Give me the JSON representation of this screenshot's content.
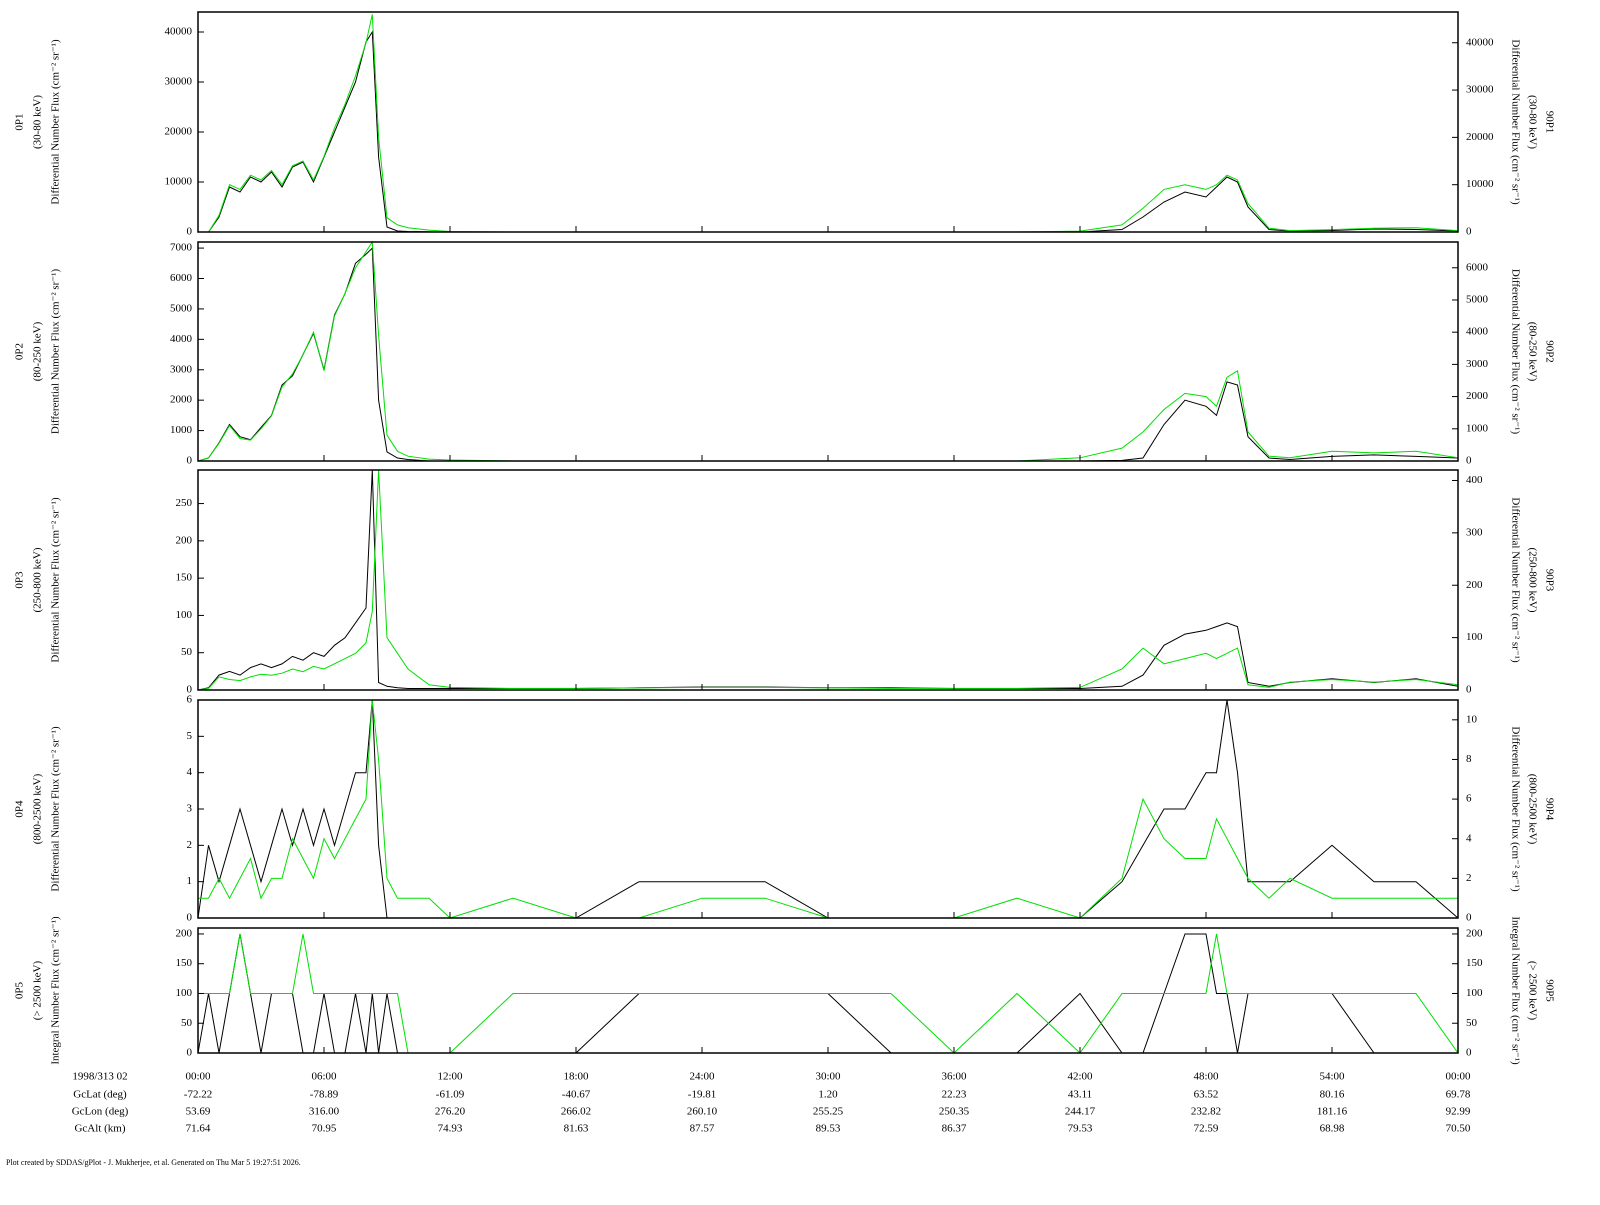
{
  "chart_data": [
    {
      "type": "line",
      "ylabel": [
        "0P1",
        "(30-80 keV)",
        "Differential Number Flux (cm⁻² sr⁻¹)"
      ],
      "y2label": [
        "90P1",
        "(30-80 keV)",
        "Differential Number Flux (cm⁻² sr⁻¹)"
      ],
      "xlim": [
        0,
        60
      ],
      "ylim": [
        0,
        44000
      ],
      "yticks": [
        0,
        10000,
        20000,
        30000,
        40000
      ],
      "y2lim": [
        0,
        46500
      ],
      "y2ticks": [
        0,
        10000,
        20000,
        30000,
        40000
      ],
      "x": [
        0,
        0.5,
        1,
        1.5,
        2,
        2.5,
        3,
        3.5,
        4,
        4.5,
        5,
        5.5,
        6,
        6.5,
        7,
        7.5,
        8,
        8.3,
        8.6,
        9,
        9.5,
        10,
        11,
        12,
        15,
        18,
        21,
        24,
        27,
        30,
        33,
        36,
        39,
        42,
        44,
        45,
        46,
        47,
        48,
        48.5,
        49,
        49.5,
        50,
        51,
        52,
        54,
        56,
        58,
        60
      ],
      "series": [
        {
          "color": "#000000",
          "values": [
            0,
            0,
            3000,
            9000,
            8000,
            11000,
            10000,
            12000,
            9000,
            13000,
            14000,
            10000,
            15000,
            20000,
            25000,
            30000,
            38000,
            40000,
            15000,
            1000,
            200,
            100,
            50,
            0,
            0,
            0,
            0,
            0,
            0,
            0,
            0,
            0,
            0,
            0,
            500,
            3000,
            6000,
            8000,
            7000,
            9000,
            11000,
            10000,
            5000,
            500,
            200,
            300,
            600,
            500,
            200
          ]
        },
        {
          "color": "#00e000",
          "axis": "y2",
          "values": [
            0,
            0,
            3500,
            10000,
            9000,
            12000,
            11000,
            13000,
            10000,
            14000,
            15000,
            11000,
            16000,
            22000,
            27000,
            33000,
            40000,
            46000,
            20000,
            3000,
            1500,
            900,
            400,
            100,
            0,
            0,
            0,
            0,
            0,
            0,
            0,
            0,
            0,
            200,
            1500,
            5000,
            9000,
            10000,
            9000,
            10000,
            12000,
            11000,
            6000,
            800,
            300,
            500,
            800,
            900,
            300
          ]
        }
      ]
    },
    {
      "type": "line",
      "ylabel": [
        "0P2",
        "(80-250 keV)",
        "Differential Number Flux (cm⁻² sr⁻¹)"
      ],
      "y2label": [
        "90P2",
        "(80-250 keV)",
        "Differential Number Flux (cm⁻² sr⁻¹)"
      ],
      "xlim": [
        0,
        60
      ],
      "ylim": [
        0,
        7200
      ],
      "yticks": [
        0,
        1000,
        2000,
        3000,
        4000,
        5000,
        6000,
        7000
      ],
      "y2lim": [
        0,
        6800
      ],
      "y2ticks": [
        0,
        1000,
        2000,
        3000,
        4000,
        5000,
        6000
      ],
      "x": [
        0,
        0.5,
        1,
        1.5,
        2,
        2.5,
        3,
        3.5,
        4,
        4.5,
        5,
        5.5,
        6,
        6.5,
        7,
        7.5,
        8,
        8.3,
        8.6,
        9,
        9.5,
        10,
        11,
        12,
        15,
        18,
        21,
        24,
        27,
        30,
        33,
        36,
        39,
        42,
        44,
        45,
        46,
        47,
        48,
        48.5,
        49,
        49.5,
        50,
        51,
        52,
        54,
        56,
        58,
        60
      ],
      "series": [
        {
          "color": "#000000",
          "values": [
            0,
            100,
            600,
            1200,
            800,
            700,
            1100,
            1500,
            2500,
            2800,
            3500,
            4200,
            3000,
            4800,
            5500,
            6500,
            6800,
            7000,
            2000,
            300,
            100,
            50,
            0,
            0,
            0,
            0,
            0,
            0,
            0,
            0,
            0,
            0,
            0,
            0,
            20,
            100,
            1200,
            2000,
            1800,
            1500,
            2600,
            2500,
            800,
            100,
            50,
            150,
            200,
            150,
            100
          ]
        },
        {
          "color": "#00e000",
          "axis": "y2",
          "values": [
            0,
            100,
            550,
            1100,
            700,
            650,
            1000,
            1400,
            2300,
            2700,
            3300,
            4000,
            2800,
            4500,
            5200,
            6000,
            6500,
            6800,
            3900,
            800,
            300,
            150,
            60,
            30,
            0,
            0,
            0,
            0,
            0,
            0,
            0,
            0,
            0,
            100,
            400,
            900,
            1600,
            2100,
            2000,
            1700,
            2600,
            2800,
            900,
            150,
            100,
            300,
            250,
            300,
            100
          ]
        }
      ]
    },
    {
      "type": "line",
      "ylabel": [
        "0P3",
        "(250-800 keV)",
        "Differential Number Flux (cm⁻² sr⁻¹)"
      ],
      "y2label": [
        "90P3",
        "(250-800 keV)",
        "Differential Number Flux (cm⁻² sr⁻¹)"
      ],
      "xlim": [
        0,
        60
      ],
      "ylim": [
        0,
        295
      ],
      "yticks": [
        0,
        50,
        100,
        150,
        200,
        250
      ],
      "y2lim": [
        0,
        420
      ],
      "y2ticks": [
        0,
        100,
        200,
        300,
        400
      ],
      "x": [
        0,
        0.5,
        1,
        1.5,
        2,
        2.5,
        3,
        3.5,
        4,
        4.5,
        5,
        5.5,
        6,
        6.5,
        7,
        7.5,
        8,
        8.3,
        8.6,
        9,
        9.5,
        10,
        11,
        12,
        15,
        18,
        21,
        24,
        27,
        30,
        33,
        36,
        39,
        42,
        44,
        45,
        46,
        47,
        48,
        48.5,
        49,
        49.5,
        50,
        51,
        52,
        54,
        56,
        58,
        60
      ],
      "series": [
        {
          "color": "#000000",
          "values": [
            0,
            3,
            20,
            25,
            20,
            30,
            35,
            30,
            35,
            45,
            40,
            50,
            45,
            60,
            70,
            90,
            110,
            295,
            10,
            5,
            3,
            2,
            2,
            2,
            2,
            2,
            3,
            4,
            4,
            3,
            3,
            2,
            2,
            2,
            5,
            20,
            60,
            75,
            80,
            85,
            90,
            85,
            10,
            5,
            10,
            15,
            10,
            15,
            5
          ]
        },
        {
          "color": "#00e000",
          "axis": "y2",
          "values": [
            0,
            3,
            25,
            20,
            18,
            25,
            30,
            28,
            32,
            40,
            35,
            45,
            40,
            50,
            60,
            70,
            90,
            150,
            420,
            100,
            70,
            40,
            10,
            5,
            3,
            3,
            4,
            5,
            5,
            4,
            3,
            3,
            3,
            5,
            40,
            80,
            50,
            60,
            70,
            60,
            70,
            80,
            10,
            5,
            15,
            20,
            15,
            20,
            10
          ]
        }
      ]
    },
    {
      "type": "line",
      "ylabel": [
        "0P4",
        "(800-2500 keV)",
        "Differential Number Flux (cm⁻² sr⁻¹)"
      ],
      "y2label": [
        "90P4",
        "(800-2500 keV)",
        "Differential Number Flux (cm⁻² sr⁻¹)"
      ],
      "xlim": [
        0,
        60
      ],
      "ylim": [
        0,
        6
      ],
      "yticks": [
        0,
        1,
        2,
        3,
        4,
        5,
        6
      ],
      "y2lim": [
        0,
        11
      ],
      "y2ticks": [
        0,
        2,
        4,
        6,
        8,
        10
      ],
      "x": [
        0,
        0.5,
        1,
        1.5,
        2,
        2.5,
        3,
        3.5,
        4,
        4.5,
        5,
        5.5,
        6,
        6.5,
        7,
        7.5,
        8,
        8.3,
        8.6,
        9,
        9.5,
        10,
        11,
        12,
        15,
        18,
        21,
        24,
        27,
        30,
        33,
        36,
        39,
        42,
        44,
        45,
        46,
        47,
        48,
        48.5,
        49,
        49.5,
        50,
        51,
        52,
        54,
        56,
        58,
        60
      ],
      "series": [
        {
          "color": "#000000",
          "values": [
            0,
            2,
            1,
            2,
            3,
            2,
            1,
            2,
            3,
            2,
            3,
            2,
            3,
            2,
            3,
            4,
            4,
            6,
            2,
            0,
            0,
            0,
            0,
            0,
            0,
            0,
            1,
            1,
            1,
            0,
            0,
            0,
            0,
            0,
            1,
            2,
            3,
            3,
            4,
            4,
            6,
            4,
            1,
            1,
            1,
            2,
            1,
            1,
            0
          ]
        },
        {
          "color": "#00e000",
          "axis": "y2",
          "values": [
            1,
            1,
            2,
            1,
            2,
            3,
            1,
            2,
            2,
            4,
            3,
            2,
            4,
            3,
            4,
            5,
            6,
            11,
            8,
            2,
            1,
            1,
            1,
            0,
            1,
            0,
            0,
            1,
            1,
            0,
            0,
            0,
            1,
            0,
            2,
            6,
            4,
            3,
            3,
            5,
            4,
            3,
            2,
            1,
            2,
            1,
            1,
            1,
            1
          ]
        }
      ]
    },
    {
      "type": "line",
      "ylabel": [
        "0P5",
        "(> 2500 keV)",
        "Integral Number Flux (cm⁻² sr⁻¹)"
      ],
      "y2label": [
        "90P5",
        "(> 2500 keV)",
        "Integral Number Flux (cm⁻² sr⁻¹)"
      ],
      "xlim": [
        0,
        60
      ],
      "ylim": [
        0,
        210
      ],
      "yticks": [
        0,
        50,
        100,
        150,
        200
      ],
      "y2lim": [
        0,
        210
      ],
      "y2ticks": [
        0,
        50,
        100,
        150,
        200
      ],
      "x": [
        0,
        0.5,
        1,
        1.5,
        2,
        2.5,
        3,
        3.5,
        4,
        4.5,
        5,
        5.5,
        6,
        6.5,
        7,
        7.5,
        8,
        8.3,
        8.6,
        9,
        9.5,
        10,
        11,
        12,
        15,
        18,
        21,
        24,
        27,
        30,
        33,
        36,
        39,
        42,
        44,
        45,
        46,
        47,
        48,
        48.5,
        49,
        49.5,
        50,
        51,
        52,
        54,
        56,
        58,
        60
      ],
      "xticks": [
        {
          "value": 0,
          "label": "00:00"
        },
        {
          "value": 6,
          "label": "06:00"
        },
        {
          "value": 12,
          "label": "12:00"
        },
        {
          "value": 18,
          "label": "18:00"
        },
        {
          "value": 24,
          "label": "24:00"
        },
        {
          "value": 30,
          "label": "30:00"
        },
        {
          "value": 36,
          "label": "36:00"
        },
        {
          "value": 42,
          "label": "42:00"
        },
        {
          "value": 48,
          "label": "48:00"
        },
        {
          "value": 54,
          "label": "54:00"
        },
        {
          "value": 60,
          "label": "00:00"
        }
      ],
      "xlabel": "1998/313 02",
      "series": [
        {
          "color": "#000000",
          "values": [
            0,
            100,
            0,
            100,
            200,
            100,
            0,
            100,
            100,
            100,
            0,
            0,
            100,
            0,
            0,
            100,
            0,
            100,
            0,
            100,
            0,
            0,
            0,
            0,
            0,
            0,
            100,
            100,
            100,
            100,
            0,
            0,
            0,
            100,
            0,
            0,
            100,
            200,
            200,
            100,
            100,
            0,
            100,
            100,
            100,
            100,
            0,
            0,
            0
          ]
        },
        {
          "color": "#00e000",
          "axis": "y2",
          "values": [
            100,
            100,
            100,
            100,
            200,
            100,
            100,
            100,
            100,
            100,
            200,
            100,
            100,
            100,
            100,
            100,
            100,
            100,
            100,
            100,
            100,
            0,
            0,
            0,
            100,
            100,
            100,
            100,
            100,
            100,
            100,
            0,
            100,
            0,
            100,
            100,
            100,
            100,
            100,
            200,
            100,
            100,
            100,
            100,
            100,
            100,
            100,
            100,
            0
          ]
        }
      ]
    }
  ],
  "ephemeris": {
    "rows": [
      {
        "label": "GcLat (deg)",
        "values": [
          "-72.22",
          "-78.89",
          "-61.09",
          "-40.67",
          "-19.81",
          "1.20",
          "22.23",
          "43.11",
          "63.52",
          "80.16",
          "69.78"
        ]
      },
      {
        "label": "GcLon (deg)",
        "values": [
          "53.69",
          "316.00",
          "276.20",
          "266.02",
          "260.10",
          "255.25",
          "250.35",
          "244.17",
          "232.82",
          "181.16",
          "92.99"
        ]
      },
      {
        "label": "GcAlt (km)",
        "values": [
          "71.64",
          "70.95",
          "74.93",
          "81.63",
          "87.57",
          "89.53",
          "86.37",
          "79.53",
          "72.59",
          "68.98",
          "70.50"
        ]
      }
    ]
  },
  "footer": "Plot created by SDDAS/gPlot - J. Mukherjee, et al.  Generated on Thu Mar 5 19:27:51 2026."
}
